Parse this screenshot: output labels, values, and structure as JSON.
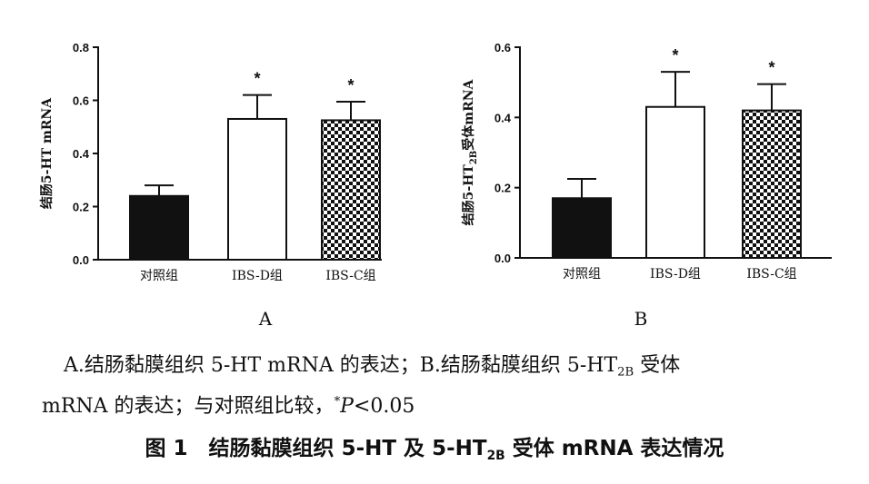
{
  "chart_data": [
    {
      "type": "bar",
      "panel": "A",
      "ylabel": "结肠5-HT mRNA",
      "categories": [
        "对照组",
        "IBS-D组",
        "IBS-C组"
      ],
      "values": [
        0.24,
        0.53,
        0.525
      ],
      "errors": [
        0.04,
        0.09,
        0.07
      ],
      "significance": [
        "",
        "*",
        "*"
      ],
      "ylim": [
        0,
        0.8
      ],
      "yticks": [
        "0.0",
        "0.2",
        "0.4",
        "0.6",
        "0.8"
      ],
      "fills": [
        "solid-black",
        "white",
        "checker"
      ]
    },
    {
      "type": "bar",
      "panel": "B",
      "ylabel_main": "结肠5-HT",
      "ylabel_sub": "2B",
      "ylabel_tail": "受体mRNA",
      "categories": [
        "对照组",
        "IBS-D组",
        "IBS-C组"
      ],
      "values": [
        0.17,
        0.43,
        0.42
      ],
      "errors": [
        0.055,
        0.1,
        0.075
      ],
      "significance": [
        "",
        "*",
        "*"
      ],
      "ylim": [
        0,
        0.6
      ],
      "yticks": [
        "0.0",
        "0.2",
        "0.4",
        "0.6"
      ],
      "fills": [
        "solid-black",
        "white",
        "checker"
      ]
    }
  ],
  "caption": {
    "line1_a": "A.结肠黏膜组织 5-HT mRNA 的表达；B.结肠黏膜组织 5-HT",
    "line1_sub": "2B",
    "line1_b": " 受体",
    "line2_a": "mRNA 的表达；与对照组比较，",
    "line2_sup": "*",
    "line2_p": "P",
    "line2_b": "<0.05",
    "title_a": "图 1　结肠黏膜组织 5-HT 及 5-HT",
    "title_sub": "2B",
    "title_b": " 受体 mRNA 表达情况"
  }
}
